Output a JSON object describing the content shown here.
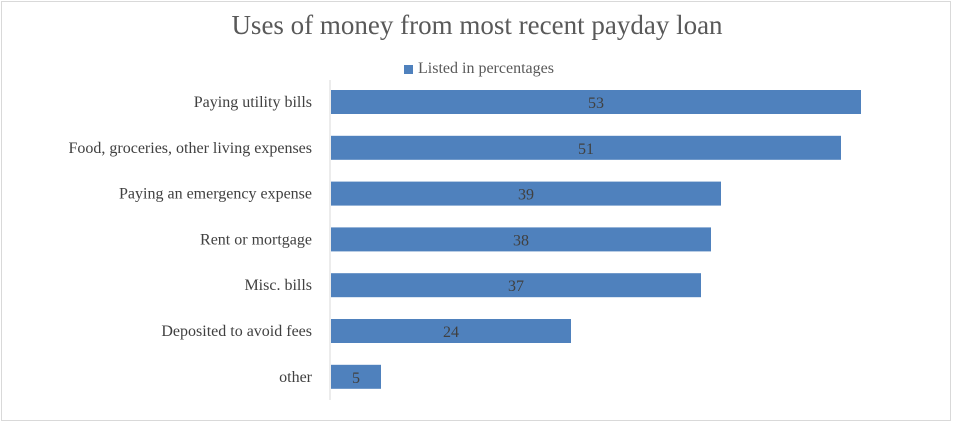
{
  "chart_data": {
    "type": "bar",
    "orientation": "horizontal",
    "title": "Uses of money from most recent payday loan",
    "legend": [
      "Listed in percentages"
    ],
    "legend_position": "top",
    "categories": [
      "Paying utility bills",
      "Food, groceries, other living expenses",
      "Paying an emergency expense",
      "Rent or mortgage",
      "Misc. bills",
      "Deposited to avoid fees",
      "other"
    ],
    "values": [
      53,
      51,
      39,
      38,
      37,
      24,
      5
    ],
    "xlabel": "",
    "ylabel": "",
    "xlim": [
      0,
      53
    ],
    "grid": false,
    "color": "#4f81bd"
  }
}
